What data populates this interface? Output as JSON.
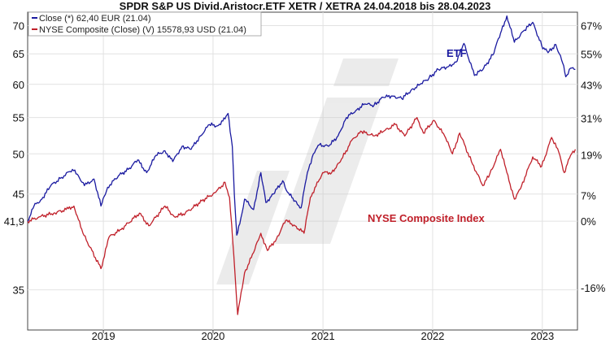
{
  "chart_data": {
    "type": "line",
    "title": "SPDR S&P US Divid.Aristocr.ETF XETR / XETRA 24.04.2018 bis 28.04.2023",
    "x_range": [
      "2018-04-24",
      "2023-04-28"
    ],
    "x_ticks": [
      "2019",
      "2020",
      "2021",
      "2022",
      "2023"
    ],
    "ylim_left": [
      31.5,
      72.5
    ],
    "y_ticks_left": [
      "70",
      "65",
      "60",
      "55",
      "50",
      "45",
      "41,9",
      "35"
    ],
    "y_ticks_right": [
      "67%",
      "55%",
      "43%",
      "31%",
      "19%",
      "7%",
      "0%",
      "-16%"
    ],
    "y_scale": "log",
    "grid": true,
    "legend_position": "top-left",
    "legend": [
      {
        "label": "Close (*) 62,40 EUR (21.04)",
        "color": "#1a1aa0"
      },
      {
        "label": "NYSE Composite (Close) (V) 15578,93 USD (21.04)",
        "color": "#c0202a"
      }
    ],
    "annotations": [
      {
        "text": "ETF",
        "color": "#1a1aa0"
      },
      {
        "text": "NYSE Composite Index",
        "color": "#c0202a"
      }
    ],
    "series": [
      {
        "color": "#1a1aa0",
        "values": [
          [
            "2018-04-24",
            41.9
          ],
          [
            "2018-05-15",
            43.6
          ],
          [
            "2018-06-10",
            44.4
          ],
          [
            "2018-07-10",
            46.0
          ],
          [
            "2018-08-15",
            47.0
          ],
          [
            "2018-09-20",
            48.0
          ],
          [
            "2018-10-10",
            47.2
          ],
          [
            "2018-10-30",
            46.0
          ],
          [
            "2018-12-01",
            46.8
          ],
          [
            "2018-12-24",
            43.6
          ],
          [
            "2019-01-15",
            45.8
          ],
          [
            "2019-02-20",
            47.2
          ],
          [
            "2019-03-25",
            48.0
          ],
          [
            "2019-04-25",
            49.2
          ],
          [
            "2019-05-25",
            47.6
          ],
          [
            "2019-06-25",
            49.8
          ],
          [
            "2019-07-25",
            50.4
          ],
          [
            "2019-08-20",
            49.0
          ],
          [
            "2019-09-20",
            51.0
          ],
          [
            "2019-10-20",
            50.6
          ],
          [
            "2019-11-20",
            52.4
          ],
          [
            "2019-12-20",
            54.0
          ],
          [
            "2020-01-15",
            53.8
          ],
          [
            "2020-02-10",
            54.8
          ],
          [
            "2020-02-20",
            55.6
          ],
          [
            "2020-03-05",
            51.0
          ],
          [
            "2020-03-12",
            45.0
          ],
          [
            "2020-03-20",
            40.4
          ],
          [
            "2020-03-30",
            41.6
          ],
          [
            "2020-04-15",
            44.4
          ],
          [
            "2020-05-15",
            43.2
          ],
          [
            "2020-06-08",
            47.6
          ],
          [
            "2020-06-25",
            44.0
          ],
          [
            "2020-07-20",
            45.0
          ],
          [
            "2020-08-20",
            46.6
          ],
          [
            "2020-09-05",
            45.2
          ],
          [
            "2020-09-30",
            44.2
          ],
          [
            "2020-10-20",
            43.4
          ],
          [
            "2020-11-10",
            47.6
          ],
          [
            "2020-11-30",
            50.0
          ],
          [
            "2020-12-20",
            51.2
          ],
          [
            "2021-01-20",
            51.0
          ],
          [
            "2021-02-20",
            52.4
          ],
          [
            "2021-03-20",
            55.0
          ],
          [
            "2021-04-20",
            56.0
          ],
          [
            "2021-05-20",
            57.0
          ],
          [
            "2021-06-20",
            56.8
          ],
          [
            "2021-07-20",
            58.0
          ],
          [
            "2021-08-20",
            58.2
          ],
          [
            "2021-09-20",
            57.8
          ],
          [
            "2021-10-20",
            59.0
          ],
          [
            "2021-11-20",
            60.0
          ],
          [
            "2021-12-20",
            61.0
          ],
          [
            "2022-01-20",
            62.4
          ],
          [
            "2022-02-20",
            62.8
          ],
          [
            "2022-03-20",
            63.6
          ],
          [
            "2022-04-15",
            66.8
          ],
          [
            "2022-05-20",
            61.4
          ],
          [
            "2022-06-20",
            62.6
          ],
          [
            "2022-07-20",
            64.8
          ],
          [
            "2022-08-15",
            68.6
          ],
          [
            "2022-09-05",
            71.8
          ],
          [
            "2022-09-30",
            67.0
          ],
          [
            "2022-10-30",
            69.0
          ],
          [
            "2022-11-30",
            70.6
          ],
          [
            "2022-12-30",
            66.4
          ],
          [
            "2023-01-20",
            65.2
          ],
          [
            "2023-02-15",
            66.6
          ],
          [
            "2023-03-10",
            63.4
          ],
          [
            "2023-03-20",
            61.2
          ],
          [
            "2023-04-05",
            62.6
          ],
          [
            "2023-04-21",
            62.4
          ]
        ]
      },
      {
        "color": "#c0202a",
        "values": [
          [
            "2018-04-24",
            41.9
          ],
          [
            "2018-06-05",
            42.4
          ],
          [
            "2018-07-20",
            42.8
          ],
          [
            "2018-08-30",
            43.2
          ],
          [
            "2018-09-25",
            43.6
          ],
          [
            "2018-10-25",
            40.6
          ],
          [
            "2018-12-24",
            37.0
          ],
          [
            "2019-01-20",
            40.2
          ],
          [
            "2019-03-01",
            41.0
          ],
          [
            "2019-05-01",
            42.8
          ],
          [
            "2019-06-01",
            41.4
          ],
          [
            "2019-07-25",
            43.6
          ],
          [
            "2019-08-25",
            42.4
          ],
          [
            "2019-10-01",
            42.8
          ],
          [
            "2019-11-25",
            44.2
          ],
          [
            "2020-01-10",
            45.2
          ],
          [
            "2020-02-10",
            46.4
          ],
          [
            "2020-02-25",
            44.6
          ],
          [
            "2020-03-10",
            38.4
          ],
          [
            "2020-03-23",
            32.8
          ],
          [
            "2020-04-15",
            36.6
          ],
          [
            "2020-05-15",
            38.6
          ],
          [
            "2020-06-08",
            40.6
          ],
          [
            "2020-06-30",
            38.8
          ],
          [
            "2020-07-30",
            40.0
          ],
          [
            "2020-08-30",
            42.0
          ],
          [
            "2020-09-30",
            41.4
          ],
          [
            "2020-10-30",
            40.6
          ],
          [
            "2020-11-20",
            44.6
          ],
          [
            "2020-12-31",
            47.6
          ],
          [
            "2021-01-30",
            47.6
          ],
          [
            "2021-02-28",
            49.0
          ],
          [
            "2021-04-10",
            52.0
          ],
          [
            "2021-05-10",
            53.0
          ],
          [
            "2021-06-20",
            52.4
          ],
          [
            "2021-07-20",
            53.0
          ],
          [
            "2021-08-30",
            54.0
          ],
          [
            "2021-09-30",
            52.4
          ],
          [
            "2021-11-10",
            55.0
          ],
          [
            "2021-12-01",
            52.8
          ],
          [
            "2022-01-05",
            54.6
          ],
          [
            "2022-02-10",
            52.4
          ],
          [
            "2022-03-08",
            50.0
          ],
          [
            "2022-04-01",
            52.8
          ],
          [
            "2022-05-10",
            49.0
          ],
          [
            "2022-06-17",
            46.0
          ],
          [
            "2022-07-10",
            47.4
          ],
          [
            "2022-08-15",
            50.6
          ],
          [
            "2022-09-05",
            47.6
          ],
          [
            "2022-09-30",
            44.4
          ],
          [
            "2022-10-20",
            45.6
          ],
          [
            "2022-11-30",
            49.6
          ],
          [
            "2022-12-30",
            48.4
          ],
          [
            "2023-02-01",
            52.2
          ],
          [
            "2023-02-25",
            50.2
          ],
          [
            "2023-03-15",
            47.6
          ],
          [
            "2023-04-05",
            49.8
          ],
          [
            "2023-04-21",
            50.6
          ]
        ]
      }
    ]
  }
}
